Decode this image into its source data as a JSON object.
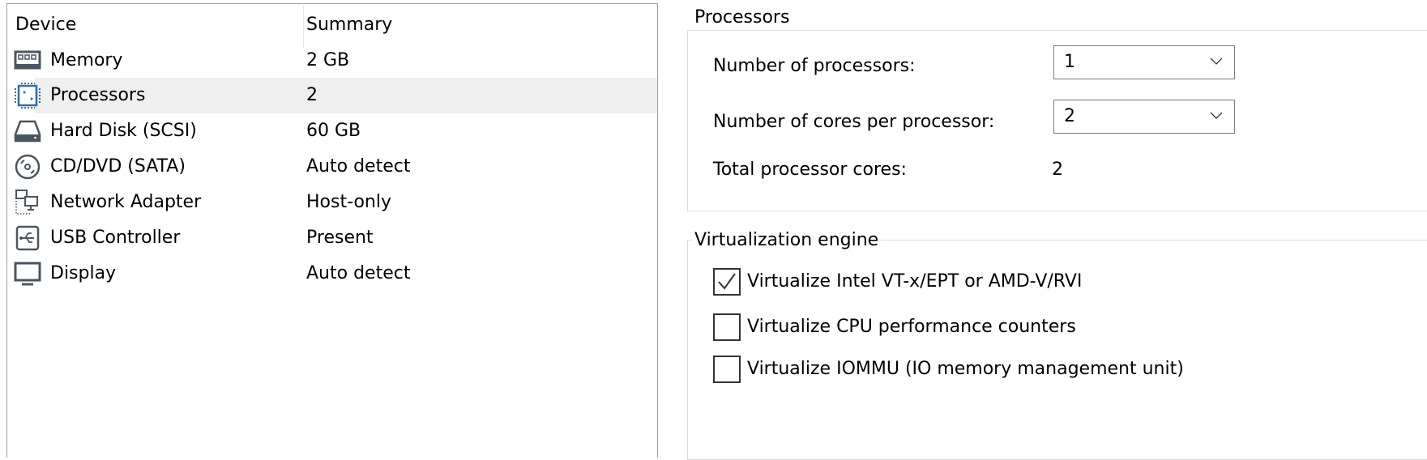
{
  "device_list": {
    "columns": [
      "Device",
      "Summary"
    ],
    "rows": [
      {
        "icon": "memory-icon",
        "device": "Memory",
        "summary": "2 GB"
      },
      {
        "icon": "processor-icon",
        "device": "Processors",
        "summary": "2",
        "selected": true
      },
      {
        "icon": "hard-disk-icon",
        "device": "Hard Disk (SCSI)",
        "summary": "60 GB"
      },
      {
        "icon": "cd-dvd-icon",
        "device": "CD/DVD (SATA)",
        "summary": "Auto detect"
      },
      {
        "icon": "network-adapter-icon",
        "device": "Network Adapter",
        "summary": "Host-only"
      },
      {
        "icon": "usb-icon",
        "device": "USB Controller",
        "summary": "Present"
      },
      {
        "icon": "display-icon",
        "device": "Display",
        "summary": "Auto detect"
      }
    ]
  },
  "processors": {
    "title": "Processors",
    "num_processors_label": "Number of processors:",
    "num_processors_value": "1",
    "cores_label": "Number of cores per processor:",
    "cores_value": "2",
    "total_label": "Total processor cores:",
    "total_value": "2"
  },
  "virtualization": {
    "title": "Virtualization engine",
    "options": [
      {
        "label": "Virtualize Intel VT-x/EPT or AMD-V/RVI",
        "checked": true
      },
      {
        "label": "Virtualize CPU performance counters",
        "checked": false
      },
      {
        "label": "Virtualize IOMMU (IO memory management unit)",
        "checked": false
      }
    ]
  },
  "colors": {
    "selection": "#efefef",
    "icon": "#4a5560",
    "processor_icon": "#2f6fa8"
  }
}
